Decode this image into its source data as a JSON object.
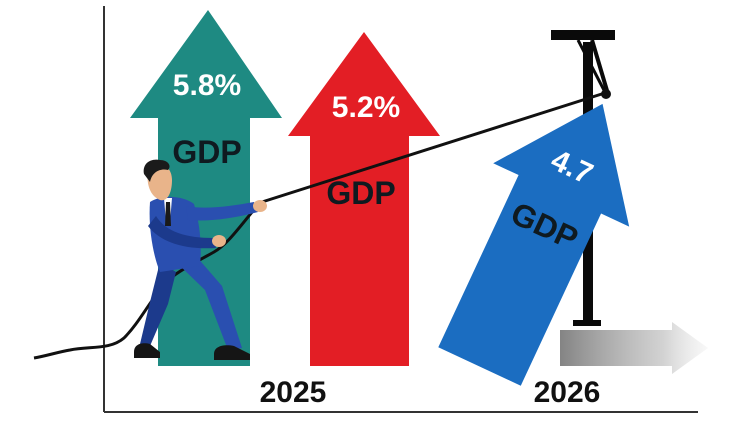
{
  "arrows": [
    {
      "value": "5.8%",
      "metric": "GDP",
      "color": "#1e8a82",
      "year_group": "2025"
    },
    {
      "value": "5.2%",
      "metric": "GDP",
      "color": "#e31e25",
      "year_group": "2025"
    },
    {
      "value": "4.7",
      "metric": "GDP",
      "color": "#1b6dc1",
      "year_group": "2026"
    }
  ],
  "years": [
    "2025",
    "2026"
  ],
  "colors": {
    "axis": "#333333",
    "rope": "#111111",
    "suit": "#2a4fb0",
    "suit_shadow": "#1c3a8c",
    "skin": "#e9b48a",
    "hair": "#1a1a1a",
    "shoes": "#151515",
    "gray_arrow": "#9a9a9a"
  },
  "icons": {
    "figure": "businessman-pulling-rope-icon",
    "pulley": "t-bar-post-icon"
  }
}
